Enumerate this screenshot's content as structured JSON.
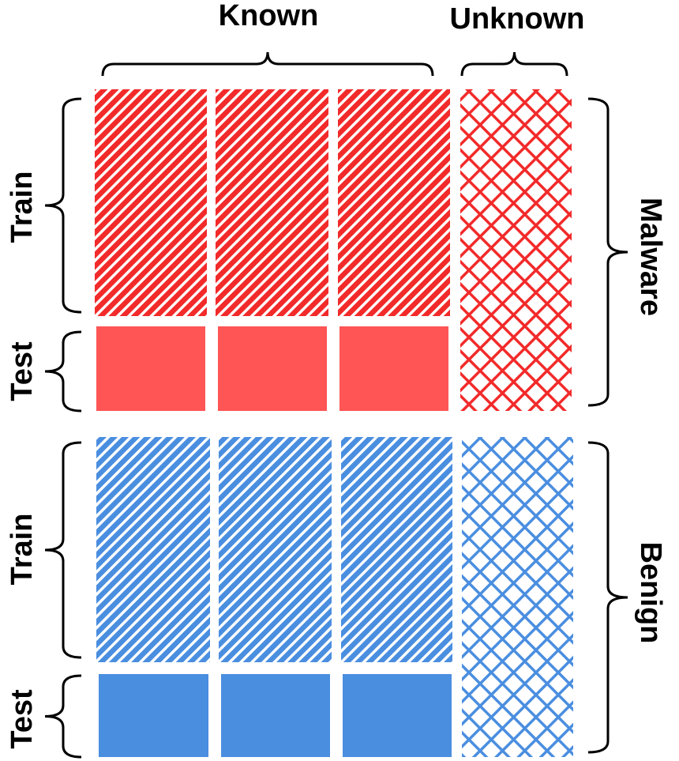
{
  "columns": {
    "known": "Known",
    "unknown": "Unknown"
  },
  "rows": {
    "malware": {
      "label": "Malware",
      "train": "Train",
      "test": "Test"
    },
    "benign": {
      "label": "Benign",
      "train": "Train",
      "test": "Test"
    }
  }
}
